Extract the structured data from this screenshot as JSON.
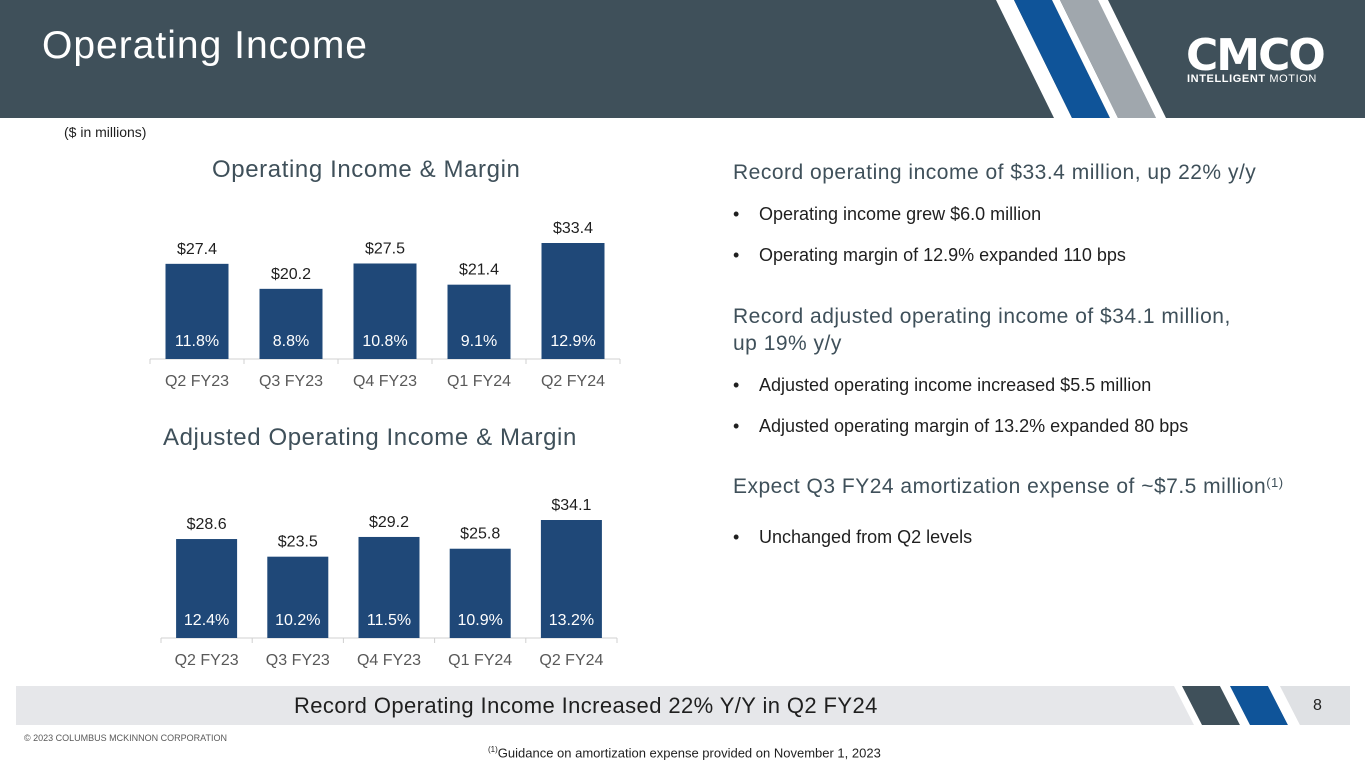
{
  "header": {
    "title": "Operating Income"
  },
  "logo": {
    "word": "CMCO",
    "tag_bold": "INTELLIGENT",
    "tag_rest": "MOTION"
  },
  "units": "($ in millions)",
  "colors": {
    "header_bg": "#3f505a",
    "bar": "#1f4878",
    "accent_blue": "#0f5499",
    "accent_gray": "#a0a7ad"
  },
  "chart_data": [
    {
      "type": "bar",
      "title": "Operating Income & Margin",
      "categories": [
        "Q2 FY23",
        "Q3 FY23",
        "Q4 FY23",
        "Q1 FY24",
        "Q2 FY24"
      ],
      "values": [
        27.4,
        20.2,
        27.5,
        21.4,
        33.4
      ],
      "value_labels": [
        "$27.4",
        "$20.2",
        "$27.5",
        "$21.4",
        "$33.4"
      ],
      "margins": [
        "11.8%",
        "8.8%",
        "10.8%",
        "9.1%",
        "12.9%"
      ],
      "ylim": [
        0,
        33.4
      ],
      "xlabel": "",
      "ylabel": ""
    },
    {
      "type": "bar",
      "title": "Adjusted Operating Income & Margin",
      "categories": [
        "Q2 FY23",
        "Q3 FY23",
        "Q4 FY23",
        "Q1 FY24",
        "Q2 FY24"
      ],
      "values": [
        28.6,
        23.5,
        29.2,
        25.8,
        34.1
      ],
      "value_labels": [
        "$28.6",
        "$23.5",
        "$29.2",
        "$25.8",
        "$34.1"
      ],
      "margins": [
        "12.4%",
        "10.2%",
        "11.5%",
        "10.9%",
        "13.2%"
      ],
      "ylim": [
        0,
        34.1
      ],
      "xlabel": "",
      "ylabel": ""
    }
  ],
  "highlights": {
    "h1": "Record operating income of $33.4 million, up 22% y/y",
    "h1_b1": "Operating income grew $6.0 million",
    "h1_b2": "Operating margin of 12.9% expanded 110 bps",
    "h2_line1": "Record adjusted operating income of $34.1 million,",
    "h2_line2": "up 19% y/y",
    "h2_b1": "Adjusted operating income increased $5.5 million",
    "h2_b2": "Adjusted operating margin of 13.2% expanded 80 bps",
    "h3": "Expect Q3 FY24 amortization expense of ~$7.5 million",
    "h3_sup": "(1)",
    "h3_b1": "Unchanged from Q2 levels",
    "bullet_char": "•"
  },
  "footer": {
    "takeaway": "Record Operating Income Increased 22% Y/Y in Q2 FY24",
    "page_number": "8",
    "copyright": "© 2023 COLUMBUS MCKINNON CORPORATION",
    "footnote_sup": "(1)",
    "footnote": "Guidance on amortization expense provided on November 1, 2023"
  }
}
